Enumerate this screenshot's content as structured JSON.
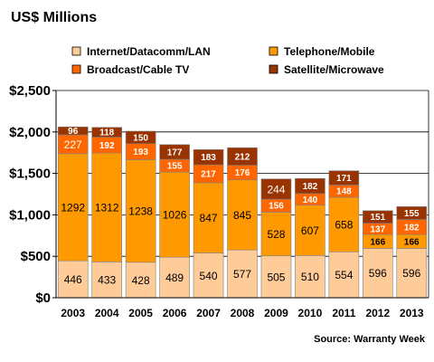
{
  "chart_data": {
    "type": "bar",
    "stacked": true,
    "title": "US$ Millions",
    "source": "Source: Warranty Week",
    "categories": [
      "2003",
      "2004",
      "2005",
      "2006",
      "2007",
      "2008",
      "2009",
      "2010",
      "2011",
      "2012",
      "2013"
    ],
    "yticks": [
      "$0",
      "$500",
      "$1,000",
      "$1,500",
      "$2,000",
      "$2,500"
    ],
    "ylim": [
      0,
      2500
    ],
    "grid": true,
    "legend_position": "top",
    "series": [
      {
        "name": "Internet/Datacomm/LAN",
        "color": "#FFCC99",
        "label_color": "#000000",
        "values": [
          446,
          433,
          428,
          489,
          540,
          577,
          505,
          510,
          554,
          596,
          596
        ]
      },
      {
        "name": "Telephone/Mobile",
        "color": "#FF9900",
        "label_color": "#000000",
        "values": [
          1292,
          1312,
          1238,
          1026,
          847,
          845,
          528,
          607,
          658,
          166,
          166
        ]
      },
      {
        "name": "Broadcast/Cable TV",
        "color": "#FF6600",
        "label_color": "#FFFFFF",
        "values": [
          227,
          192,
          193,
          155,
          217,
          176,
          156,
          140,
          148,
          137,
          182
        ]
      },
      {
        "name": "Satellite/Microwave",
        "color": "#993300",
        "label_color": "#FFFFFF",
        "values": [
          96,
          118,
          150,
          177,
          183,
          212,
          244,
          182,
          171,
          151,
          155
        ]
      }
    ]
  }
}
